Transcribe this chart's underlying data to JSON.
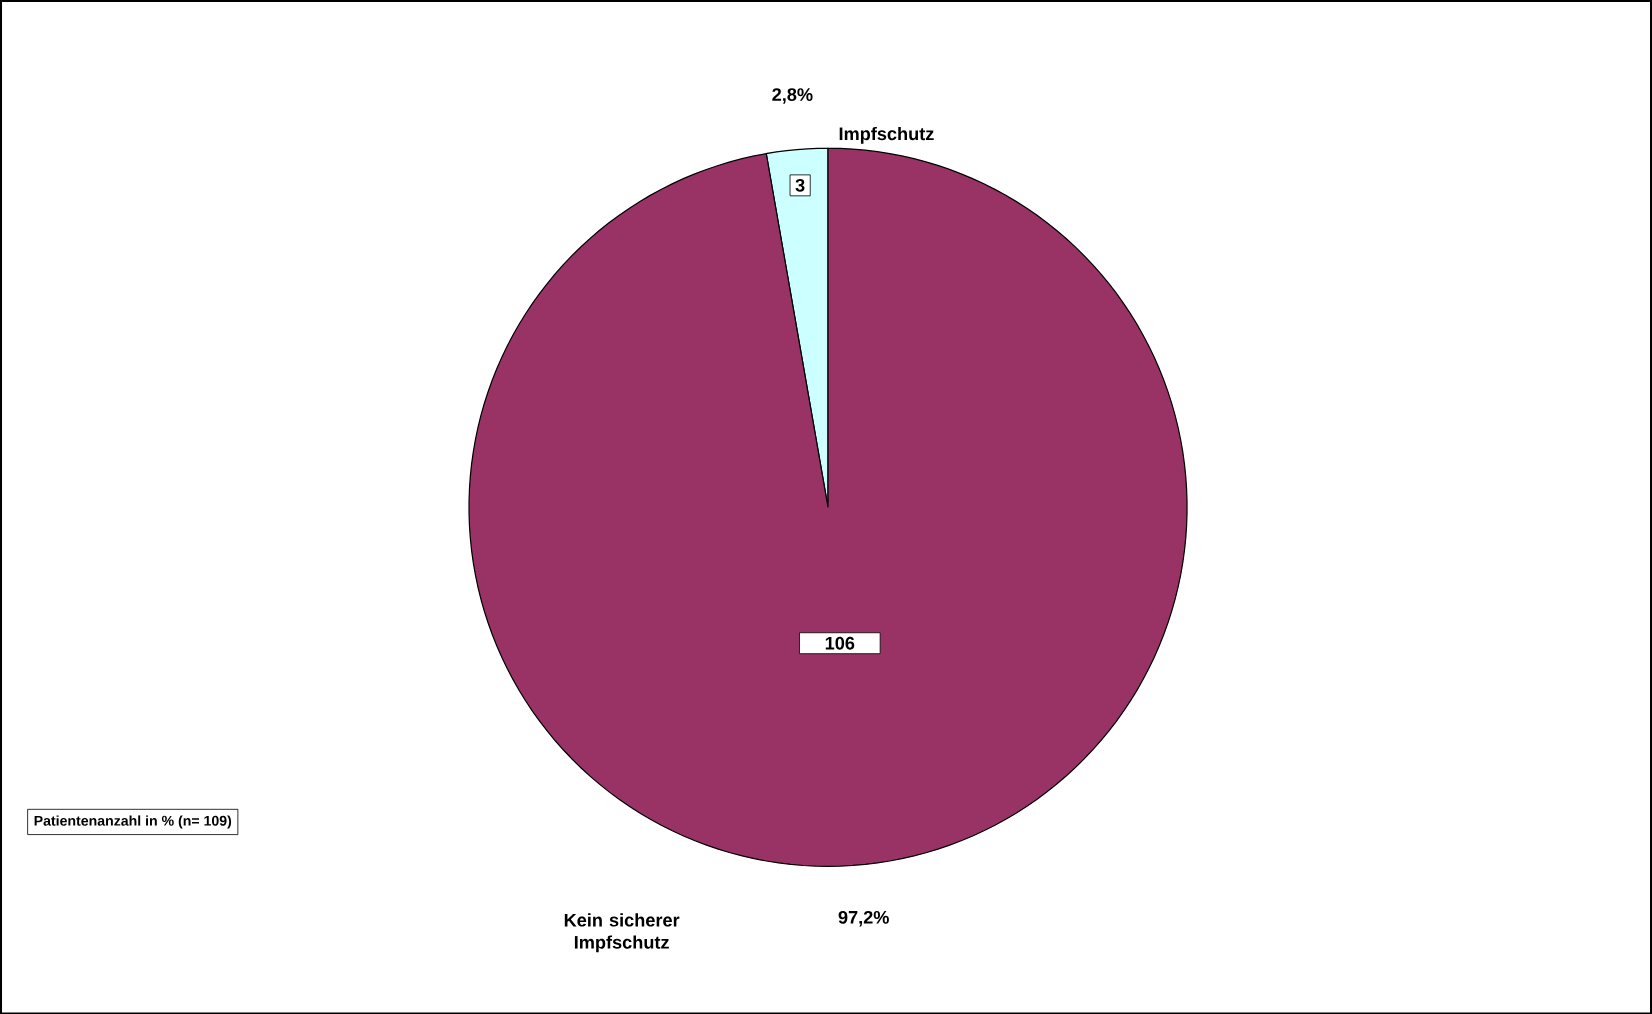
{
  "chart_data": {
    "type": "pie",
    "categories": [
      "Impfschutz",
      "Kein sicherer Impfschutz"
    ],
    "values": [
      3,
      106
    ],
    "colors": [
      "#ccffff",
      "#993366"
    ],
    "data_labels": true,
    "annotations": [
      {
        "text": "2,8%"
      },
      {
        "text": "97,2%"
      },
      "Patientenanzahl in % (n= 109)"
    ]
  }
}
